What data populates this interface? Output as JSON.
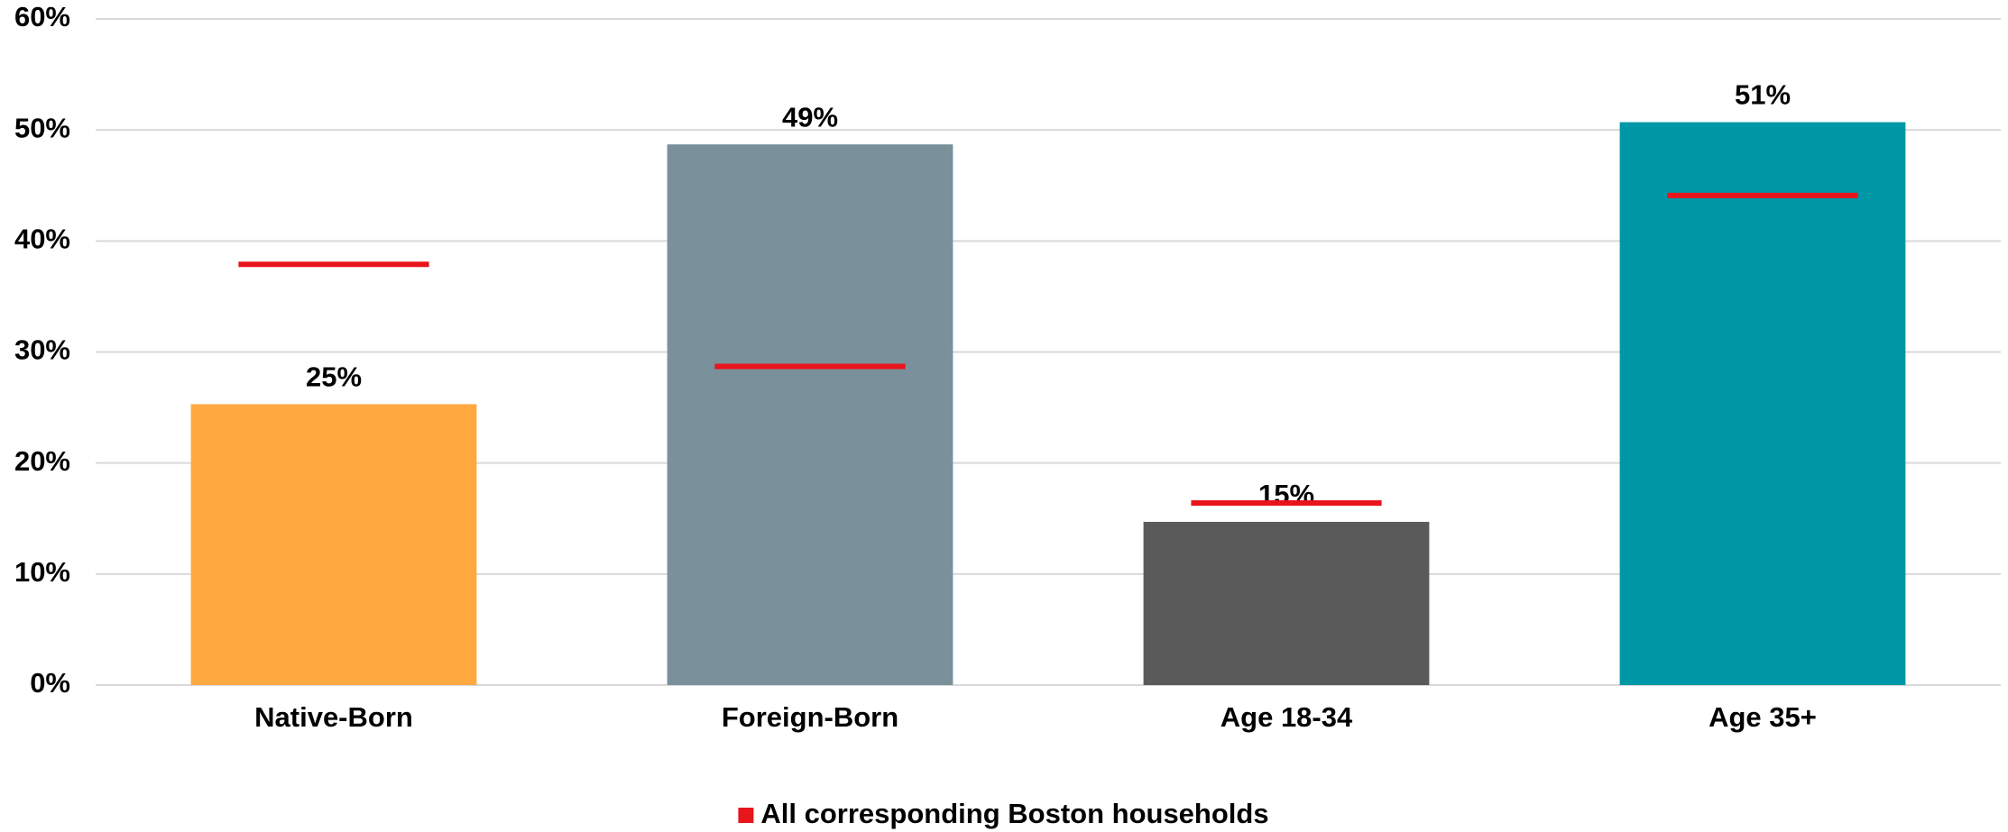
{
  "chart_data": {
    "type": "bar",
    "categories": [
      "Native-Born",
      "Foreign-Born",
      "Age 18-34",
      "Age 35+"
    ],
    "series": [
      {
        "colors": [
          "#ffa940",
          "#7a909a",
          "#5a5a5a",
          "#0098a6"
        ],
        "values": [
          25.3,
          48.7,
          14.7,
          50.7
        ],
        "value_labels": [
          "25%",
          "49%",
          "15%",
          "51%"
        ]
      },
      {
        "name": "All corresponding Boston households",
        "color": "#e8151b",
        "marker": "dash",
        "values": [
          37.9,
          28.7,
          16.4,
          44.1
        ]
      }
    ],
    "ylim": [
      0,
      60
    ],
    "yticks": [
      {
        "value": 0,
        "label": "0%"
      },
      {
        "value": 10,
        "label": "10%"
      },
      {
        "value": 20,
        "label": "20%"
      },
      {
        "value": 30,
        "label": "30%"
      },
      {
        "value": 40,
        "label": "40%"
      },
      {
        "value": 50,
        "label": "50%"
      },
      {
        "value": 60,
        "label": "60%"
      }
    ],
    "grid": true,
    "legend": "bottom"
  }
}
